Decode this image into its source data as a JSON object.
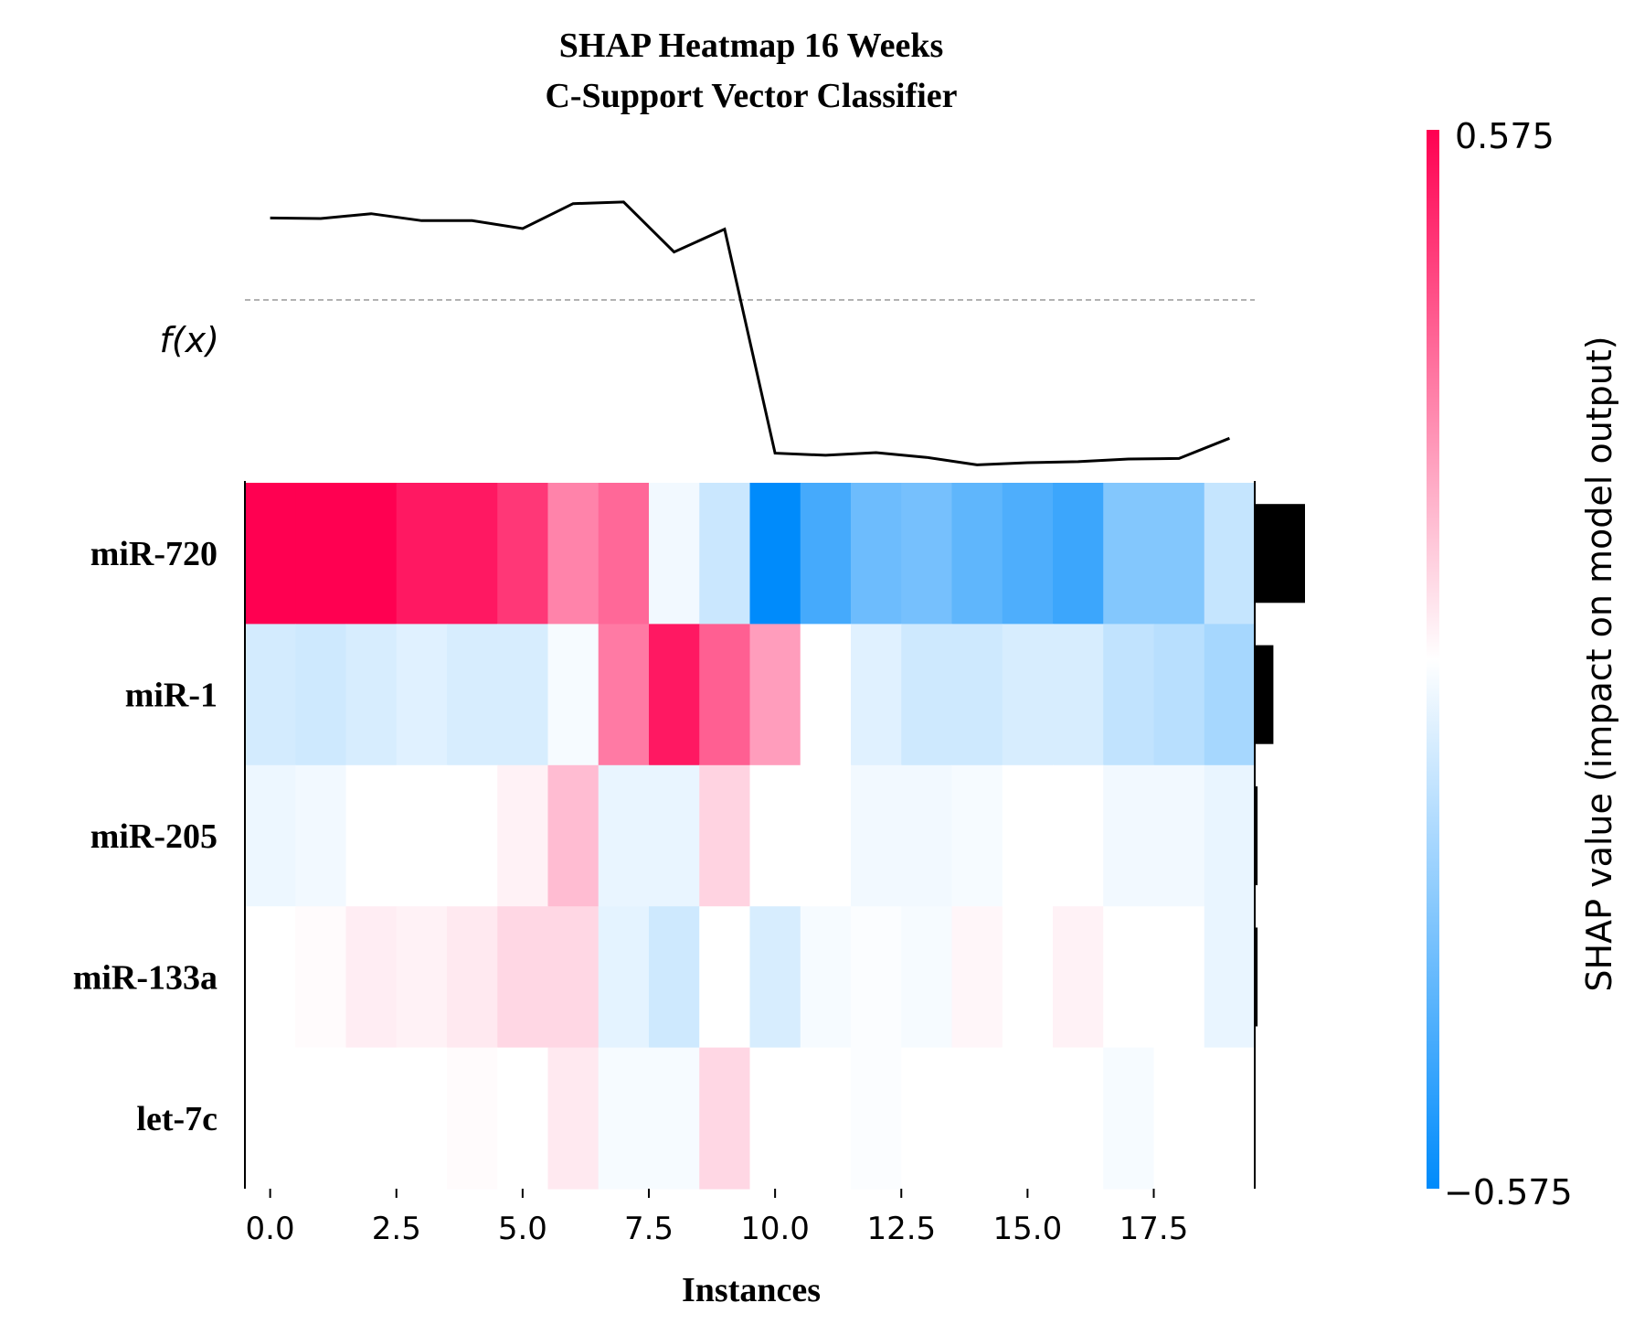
{
  "chart_data": {
    "type": "heatmap",
    "title": "SHAP Heatmap 16 Weeks",
    "subtitle": "C-Support Vector Classifier",
    "xlabel": "Instances",
    "fx_label": "f(x)",
    "colorbar_label": "SHAP value (impact on model output)",
    "colorbar_max_label": "0.575",
    "colorbar_min_label": "−0.575",
    "value_range": [
      -0.575,
      0.575
    ],
    "x_ticks": [
      "0.0",
      "2.5",
      "5.0",
      "7.5",
      "10.0",
      "12.5",
      "15.0",
      "17.5"
    ],
    "x_tick_values": [
      0,
      2.5,
      5,
      7.5,
      10,
      12.5,
      15,
      17.5
    ],
    "features": [
      "miR-720",
      "miR-1",
      "miR-205",
      "miR-133a",
      "let-7c"
    ],
    "matrix": [
      [
        0.575,
        0.575,
        0.575,
        0.52,
        0.52,
        0.45,
        0.28,
        0.34,
        -0.03,
        -0.12,
        -0.575,
        -0.42,
        -0.33,
        -0.31,
        -0.36,
        -0.4,
        -0.44,
        -0.28,
        -0.28,
        -0.13
      ],
      [
        -0.1,
        -0.11,
        -0.09,
        -0.07,
        -0.09,
        -0.09,
        -0.02,
        0.3,
        0.52,
        0.36,
        0.22,
        0.0,
        -0.07,
        -0.11,
        -0.11,
        -0.09,
        -0.09,
        -0.14,
        -0.16,
        -0.2
      ],
      [
        -0.04,
        -0.03,
        0.0,
        0.0,
        0.0,
        0.03,
        0.15,
        -0.05,
        -0.05,
        0.1,
        0.0,
        0.0,
        -0.03,
        -0.03,
        -0.02,
        0.0,
        0.0,
        -0.03,
        -0.03,
        -0.05
      ],
      [
        0.0,
        0.01,
        0.04,
        0.03,
        0.05,
        0.09,
        0.09,
        -0.06,
        -0.11,
        0.0,
        -0.09,
        -0.02,
        -0.01,
        -0.02,
        0.02,
        0.0,
        0.03,
        0.0,
        0.0,
        -0.05
      ],
      [
        0.0,
        0.0,
        0.0,
        0.0,
        0.01,
        0.0,
        0.05,
        -0.02,
        -0.02,
        0.09,
        0.0,
        0.0,
        -0.01,
        0.0,
        0.0,
        0.0,
        0.0,
        -0.02,
        0.0,
        0.0
      ]
    ],
    "fx_values": [
      0.77,
      0.765,
      0.81,
      0.745,
      0.745,
      0.67,
      0.905,
      0.92,
      0.45,
      0.665,
      -1.44,
      -1.46,
      -1.435,
      -1.48,
      -1.55,
      -1.53,
      -1.52,
      -1.495,
      -1.49,
      -1.3
    ],
    "fx_range": [
      -1.65,
      1.1
    ],
    "fx_baseline": 0.0,
    "importance": [
      0.27,
      0.1,
      0.015,
      0.015,
      0.0
    ],
    "importance_max": 0.27,
    "colors": {
      "positive": "#ff0051",
      "negative": "#008bfb",
      "neutral": "#ffffff",
      "line": "#000000",
      "bar": "#000000",
      "baseline": "#999999"
    }
  }
}
